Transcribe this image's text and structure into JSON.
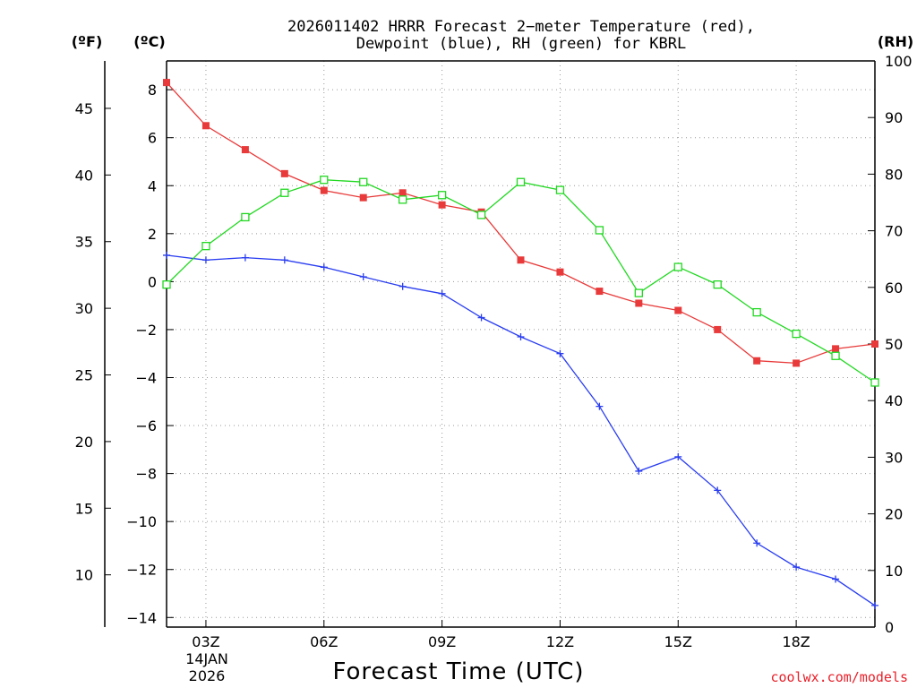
{
  "title_line1": "2026011402 HRRR Forecast 2−meter Temperature (red),",
  "title_line2": "Dewpoint (blue), RH (green) for KBRL",
  "unit_f": "(ºF)",
  "unit_c": "(ºC)",
  "unit_rh": "(RH)",
  "xlabel": "Forecast Time (UTC)",
  "date_day": "14JAN",
  "date_year": "2026",
  "credit": "coolwx.com/models",
  "colors": {
    "temperature": "#e83a3a",
    "dewpoint": "#2a3ef0",
    "rh": "#22d822"
  },
  "chart_data": {
    "type": "line",
    "x_hours": [
      2,
      3,
      4,
      5,
      6,
      7,
      8,
      9,
      10,
      11,
      12,
      13,
      14,
      15,
      16,
      17,
      18,
      19,
      20
    ],
    "x_ticks": [
      {
        "hour": 3,
        "label": "03Z"
      },
      {
        "hour": 6,
        "label": "06Z"
      },
      {
        "hour": 9,
        "label": "09Z"
      },
      {
        "hour": 12,
        "label": "12Z"
      },
      {
        "hour": 15,
        "label": "15Z"
      },
      {
        "hour": 18,
        "label": "18Z"
      }
    ],
    "x_range": [
      2,
      20
    ],
    "y_celsius": {
      "range": [
        -14.4,
        9.2
      ],
      "ticks": [
        8,
        6,
        4,
        2,
        0,
        -2,
        -4,
        -6,
        -8,
        -10,
        -12,
        -14
      ],
      "tick_labels": [
        "8",
        "6",
        "4",
        "2",
        "0",
        "−2",
        "−4",
        "−6",
        "−8",
        "−10",
        "−12",
        "−14"
      ]
    },
    "y_fahrenheit": {
      "ticks": [
        45,
        40,
        35,
        30,
        25,
        20,
        15,
        10
      ],
      "tick_labels": [
        "45",
        "40",
        "35",
        "30",
        "25",
        "20",
        "15",
        "10"
      ]
    },
    "y_rh": {
      "range": [
        0,
        100
      ],
      "ticks": [
        100,
        90,
        80,
        70,
        60,
        50,
        40,
        30,
        20,
        10,
        0
      ],
      "tick_labels": [
        "100",
        "90",
        "80",
        "70",
        "60",
        "50",
        "40",
        "30",
        "20",
        "10",
        "0"
      ]
    },
    "series": [
      {
        "name": "Temperature",
        "axis": "celsius",
        "marker": "filled-square",
        "values": [
          8.3,
          6.5,
          5.5,
          4.5,
          3.8,
          3.5,
          3.7,
          3.2,
          2.9,
          0.9,
          0.4,
          -0.4,
          -0.9,
          -1.2,
          -2.0,
          -3.3,
          -3.4,
          -2.8,
          -2.6
        ]
      },
      {
        "name": "Dewpoint",
        "axis": "celsius",
        "marker": "plus",
        "values": [
          1.1,
          0.9,
          1.0,
          0.9,
          0.6,
          0.2,
          -0.2,
          -0.5,
          -1.5,
          -2.3,
          -3.0,
          -5.2,
          -7.9,
          -7.3,
          -8.7,
          -10.9,
          -11.9,
          -12.4,
          -13.5
        ]
      },
      {
        "name": "RH",
        "axis": "rh",
        "marker": "open-square",
        "values": [
          60.5,
          67.3,
          72.4,
          76.7,
          79.0,
          78.6,
          75.5,
          76.3,
          72.8,
          78.6,
          77.2,
          70.1,
          59.0,
          63.6,
          60.5,
          55.6,
          51.8,
          47.9,
          43.2
        ]
      }
    ]
  }
}
